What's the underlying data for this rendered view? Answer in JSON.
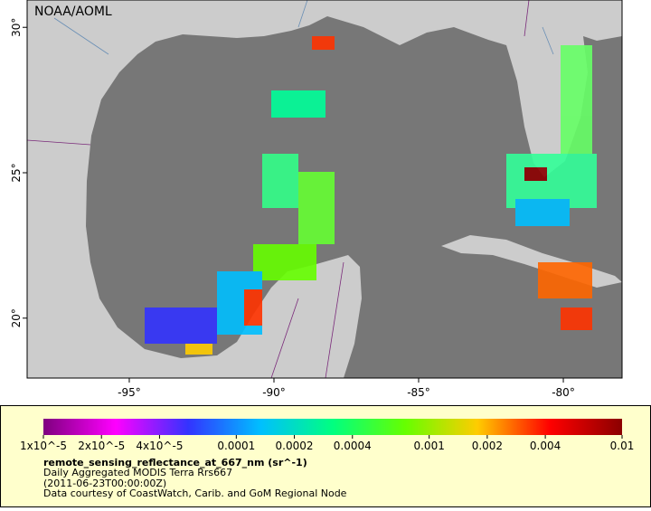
{
  "header": {
    "credit": "NOAA/AOML"
  },
  "map": {
    "xlim": [
      -98.53,
      -77.97
    ],
    "ylim": [
      17.94,
      30.94
    ],
    "lon_ticks": [
      {
        "value": -95,
        "label": "-95°"
      },
      {
        "value": -90,
        "label": "-90°"
      },
      {
        "value": -85,
        "label": "-85°"
      },
      {
        "value": -80,
        "label": "-80°"
      }
    ],
    "lat_ticks": [
      {
        "value": 20,
        "label": "20°"
      },
      {
        "value": 25,
        "label": "25°"
      },
      {
        "value": 30,
        "label": "30°"
      }
    ]
  },
  "colorbar": {
    "scale": "log",
    "range": [
      1e-05,
      0.01
    ],
    "colors": [
      "#7f007f",
      "#ff00ff",
      "#3333ff",
      "#00bfff",
      "#00ff80",
      "#66ff00",
      "#ffcc00",
      "#ff0000",
      "#8b0000"
    ],
    "ticks": [
      {
        "value": 1e-05,
        "label": "1x10^-5"
      },
      {
        "value": 2e-05,
        "label": "2x10^-5"
      },
      {
        "value": 4e-05,
        "label": "4x10^-5"
      },
      {
        "value": 0.0001,
        "label": "0.0001"
      },
      {
        "value": 0.0002,
        "label": "0.0002"
      },
      {
        "value": 0.0004,
        "label": "0.0004"
      },
      {
        "value": 0.001,
        "label": "0.001"
      },
      {
        "value": 0.002,
        "label": "0.002"
      },
      {
        "value": 0.004,
        "label": "0.004"
      },
      {
        "value": 0.01,
        "label": "0.01"
      }
    ]
  },
  "caption": {
    "variable": "remote_sensing_reflectance_at_667_nm (sr^-1)",
    "product": "Daily Aggregated MODIS Terra Rrs667",
    "time": "(2011-06-23T00:00:00Z)",
    "source": "Data courtesy of CoastWatch, Carib. and GoM Regional Node"
  }
}
